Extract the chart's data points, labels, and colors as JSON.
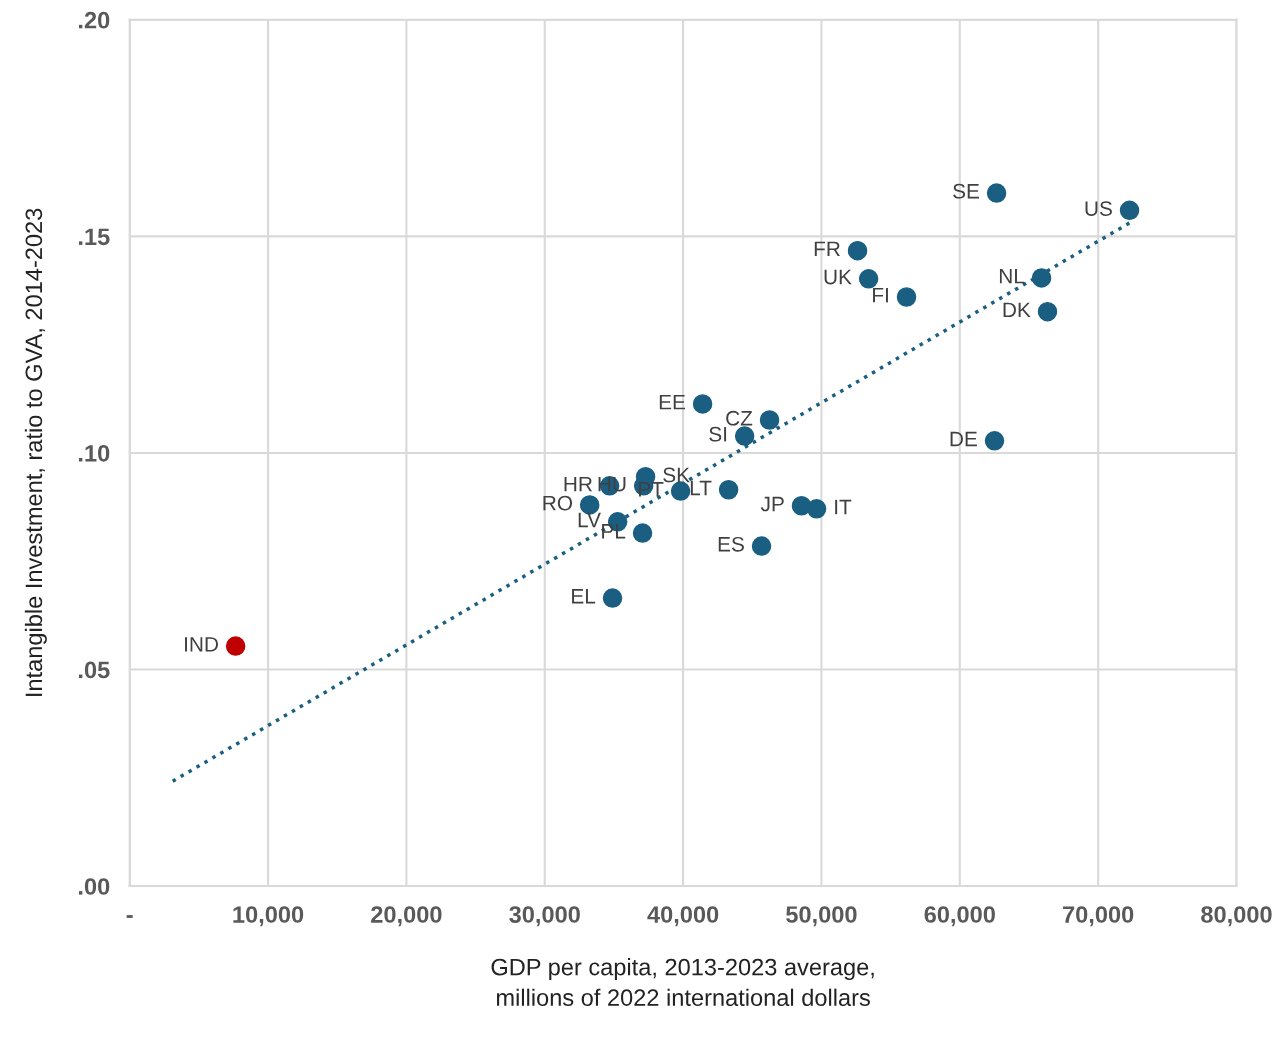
{
  "chart_data": {
    "type": "scatter",
    "xlabel": "GDP per capita, 2013-2023 average,\nmillions of 2022 international dollars",
    "ylabel": "Intangible Investment, ratio to GVA, 2014-2023",
    "xlim": [
      0,
      80000
    ],
    "ylim": [
      0,
      0.2
    ],
    "xticks": [
      {
        "value": 0,
        "label": "-"
      },
      {
        "value": 10000,
        "label": "10,000"
      },
      {
        "value": 20000,
        "label": "20,000"
      },
      {
        "value": 30000,
        "label": "30,000"
      },
      {
        "value": 40000,
        "label": "40,000"
      },
      {
        "value": 50000,
        "label": "50,000"
      },
      {
        "value": 60000,
        "label": "60,000"
      },
      {
        "value": 70000,
        "label": "70,000"
      },
      {
        "value": 80000,
        "label": "80,000"
      }
    ],
    "yticks": [
      {
        "value": 0,
        "label": ".00"
      },
      {
        "value": 0.05,
        "label": ".05"
      },
      {
        "value": 0.1,
        "label": ".10"
      },
      {
        "value": 0.15,
        "label": ".15"
      },
      {
        "value": 0.2,
        "label": ".20"
      }
    ],
    "grid": true,
    "marker": "circle",
    "series": [
      {
        "color": "#1a5f82",
        "x": [
          62660,
          72270,
          52610,
          53410,
          56150,
          65910,
          66340,
          62510,
          41410,
          46250,
          44450,
          37290,
          34690,
          37150,
          39820,
          43290,
          33250,
          35270,
          37070,
          34900,
          45670,
          48560,
          49650
        ],
        "values": [
          0.16,
          0.156,
          0.1467,
          0.1402,
          0.136,
          0.1404,
          0.1326,
          0.1028,
          0.1113,
          0.1076,
          0.1039,
          0.0945,
          0.0924,
          0.0924,
          0.0912,
          0.0915,
          0.088,
          0.0841,
          0.0815,
          0.0665,
          0.0785,
          0.0878,
          0.0871
        ]
      },
      {
        "color": "#c00000",
        "x": [
          7660
        ],
        "values": [
          0.0554
        ]
      },
      {
        "type": "line",
        "line_style": "dotted",
        "marker": "none",
        "color": "#1a5f82",
        "x": [
          3110,
          72270
        ],
        "values": [
          0.0242,
          0.1531
        ]
      }
    ],
    "annotations": [
      {
        "text": "SE",
        "x": 62660,
        "y": 0.16
      },
      {
        "text": "US",
        "x": 72270,
        "y": 0.156
      },
      {
        "text": "FR",
        "x": 52610,
        "y": 0.1467
      },
      {
        "text": "UK",
        "x": 53410,
        "y": 0.1402
      },
      {
        "text": "FI",
        "x": 56150,
        "y": 0.136
      },
      {
        "text": "NL",
        "x": 65910,
        "y": 0.1404
      },
      {
        "text": "DK",
        "x": 66340,
        "y": 0.1326
      },
      {
        "text": "DE",
        "x": 62510,
        "y": 0.1028
      },
      {
        "text": "EE",
        "x": 41410,
        "y": 0.1113
      },
      {
        "text": "CZ",
        "x": 46250,
        "y": 0.1076
      },
      {
        "text": "SI",
        "x": 44450,
        "y": 0.1039
      },
      {
        "text": "SK",
        "x": 37290,
        "y": 0.0945
      },
      {
        "text": "HR",
        "x": 34690,
        "y": 0.0924
      },
      {
        "text": "HU",
        "x": 37150,
        "y": 0.0924
      },
      {
        "text": "PT",
        "x": 39820,
        "y": 0.0912
      },
      {
        "text": "LT",
        "x": 43290,
        "y": 0.0915
      },
      {
        "text": "RO",
        "x": 33250,
        "y": 0.088
      },
      {
        "text": "LV",
        "x": 35270,
        "y": 0.0841
      },
      {
        "text": "PL",
        "x": 37070,
        "y": 0.0815
      },
      {
        "text": "EL",
        "x": 34900,
        "y": 0.0665
      },
      {
        "text": "ES",
        "x": 45670,
        "y": 0.0785
      },
      {
        "text": "JP",
        "x": 48560,
        "y": 0.0878
      },
      {
        "text": "IT",
        "x": 49650,
        "y": 0.0871
      },
      {
        "text": "IND",
        "x": 7660,
        "y": 0.0554
      }
    ]
  }
}
